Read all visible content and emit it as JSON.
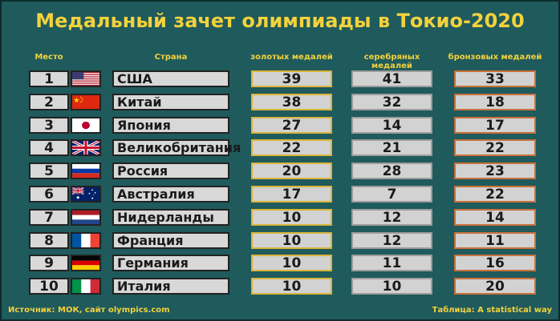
{
  "title": "Медальный зачет олимпиады в Токио-2020",
  "headers": {
    "place": "Место",
    "country": "Страна",
    "gold": "золотых медалей",
    "silver": "серебряных медалей",
    "bronze": "бронзовых медалей"
  },
  "rows": [
    {
      "place": "1",
      "flag": "usa-flag-icon",
      "country": "США",
      "gold": "39",
      "silver": "41",
      "bronze": "33"
    },
    {
      "place": "2",
      "flag": "china-flag-icon",
      "country": "Китай",
      "gold": "38",
      "silver": "32",
      "bronze": "18"
    },
    {
      "place": "3",
      "flag": "japan-flag-icon",
      "country": "Япония",
      "gold": "27",
      "silver": "14",
      "bronze": "17"
    },
    {
      "place": "4",
      "flag": "uk-flag-icon",
      "country": "Великобритания",
      "gold": "22",
      "silver": "21",
      "bronze": "22"
    },
    {
      "place": "5",
      "flag": "russia-flag-icon",
      "country": "Россия",
      "gold": "20",
      "silver": "28",
      "bronze": "23"
    },
    {
      "place": "6",
      "flag": "australia-flag-icon",
      "country": "Австралия",
      "gold": "17",
      "silver": "7",
      "bronze": "22"
    },
    {
      "place": "7",
      "flag": "netherlands-flag-icon",
      "country": "Нидерланды",
      "gold": "10",
      "silver": "12",
      "bronze": "14"
    },
    {
      "place": "8",
      "flag": "france-flag-icon",
      "country": "Франция",
      "gold": "10",
      "silver": "12",
      "bronze": "11"
    },
    {
      "place": "9",
      "flag": "germany-flag-icon",
      "country": "Германия",
      "gold": "10",
      "silver": "11",
      "bronze": "16"
    },
    {
      "place": "10",
      "flag": "italy-flag-icon",
      "country": "Италия",
      "gold": "10",
      "silver": "10",
      "bronze": "20"
    }
  ],
  "footer": {
    "source": "Источник: МОК, сайт olympics.com",
    "credit": "Таблица: A statistical way"
  },
  "colors": {
    "background": "#1f5a5c",
    "accent": "#f2d23c",
    "gold_border": "#d9b43a",
    "silver_border": "#9c9c9c",
    "bronze_border": "#c9713a"
  }
}
